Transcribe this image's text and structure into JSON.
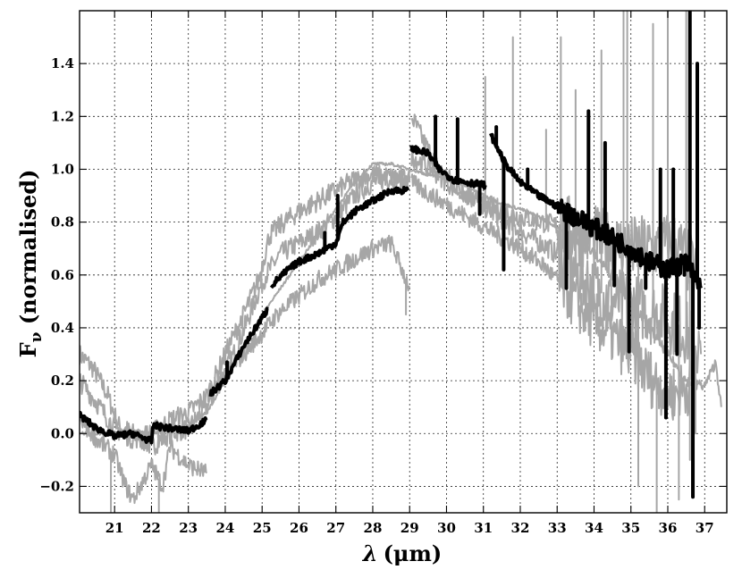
{
  "chart_data": {
    "type": "line",
    "title": "",
    "xlabel_symbol": "λ",
    "xlabel_unit": "(μm)",
    "ylabel_main": "F",
    "ylabel_sub": "ν",
    "ylabel_suffix": " (normalised)",
    "xlim": [
      20.05,
      37.6
    ],
    "ylim": [
      -0.3,
      1.6
    ],
    "x_ticks": [
      21,
      22,
      23,
      24,
      25,
      26,
      27,
      28,
      29,
      30,
      31,
      32,
      33,
      34,
      35,
      36,
      37
    ],
    "x_tick_labels": [
      "21",
      "22",
      "23",
      "24",
      "25",
      "26",
      "27",
      "28",
      "29",
      "30",
      "31",
      "32",
      "33",
      "34",
      "35",
      "36",
      "37"
    ],
    "y_ticks": [
      -0.2,
      0.0,
      0.2,
      0.4,
      0.6,
      0.8,
      1.0,
      1.2,
      1.4
    ],
    "y_tick_labels": [
      "−0.2",
      "0.0",
      "0.2",
      "0.4",
      "0.6",
      "0.8",
      "1.0",
      "1.2",
      "1.4"
    ],
    "grid": true,
    "colors": {
      "primary": "#000000",
      "comparison": "#a6a6a6"
    },
    "series": [
      {
        "role": "primary",
        "color": "#000000",
        "noise": 0.012,
        "segments": [
          [
            [
              20.05,
              0.07
            ],
            [
              20.5,
              0.02
            ],
            [
              21.0,
              -0.01
            ],
            [
              21.5,
              0.0
            ],
            [
              22.0,
              -0.03
            ],
            [
              22.05,
              0.03
            ],
            [
              22.5,
              0.02
            ],
            [
              23.0,
              0.01
            ],
            [
              23.5,
              0.05
            ]
          ],
          [
            [
              23.6,
              0.15
            ],
            [
              24.0,
              0.2
            ],
            [
              24.5,
              0.33
            ],
            [
              25.15,
              0.47
            ]
          ],
          [
            [
              25.25,
              0.56
            ],
            [
              25.7,
              0.62
            ],
            [
              26.0,
              0.65
            ],
            [
              26.5,
              0.68
            ],
            [
              27.0,
              0.72
            ],
            [
              27.2,
              0.8
            ],
            [
              27.6,
              0.85
            ],
            [
              28.0,
              0.88
            ],
            [
              28.5,
              0.92
            ],
            [
              28.95,
              0.92
            ]
          ],
          [
            [
              29.05,
              1.08
            ],
            [
              29.5,
              1.06
            ],
            [
              29.8,
              1.0
            ],
            [
              30.2,
              0.96
            ],
            [
              30.6,
              0.95
            ],
            [
              31.05,
              0.94
            ]
          ],
          [
            [
              31.2,
              1.13
            ],
            [
              31.6,
              1.02
            ],
            [
              32.0,
              0.95
            ],
            [
              32.5,
              0.9
            ],
            [
              33.0,
              0.86
            ],
            [
              33.5,
              0.82
            ],
            [
              34.0,
              0.78
            ],
            [
              34.5,
              0.74
            ],
            [
              35.0,
              0.7
            ],
            [
              35.5,
              0.65
            ],
            [
              36.0,
              0.62
            ],
            [
              36.5,
              0.65
            ],
            [
              36.9,
              0.55
            ]
          ]
        ],
        "spikes": [
          [
            24.05,
            0.27
          ],
          [
            26.7,
            0.76
          ],
          [
            27.05,
            0.9
          ],
          [
            29.7,
            1.2
          ],
          [
            30.3,
            1.19
          ],
          [
            30.9,
            0.83
          ],
          [
            31.35,
            1.16
          ],
          [
            31.55,
            0.62
          ],
          [
            32.2,
            1.0
          ],
          [
            33.25,
            0.55
          ],
          [
            33.85,
            1.22
          ],
          [
            34.3,
            1.1
          ],
          [
            34.55,
            0.56
          ],
          [
            34.95,
            0.31
          ],
          [
            35.4,
            0.55
          ],
          [
            35.8,
            1.0
          ],
          [
            35.95,
            0.06
          ],
          [
            36.15,
            1.0
          ],
          [
            36.25,
            0.3
          ],
          [
            36.45,
            0.6
          ],
          [
            36.6,
            1.6
          ],
          [
            36.68,
            -0.24
          ],
          [
            36.8,
            1.4
          ],
          [
            36.85,
            0.4
          ]
        ]
      },
      {
        "role": "comparison",
        "color": "#a6a6a6",
        "noise": 0.04,
        "segments": [
          [
            [
              20.05,
              0.3
            ],
            [
              20.4,
              0.25
            ],
            [
              20.8,
              0.15
            ],
            [
              21.1,
              0.03
            ],
            [
              21.5,
              0.0
            ],
            [
              22.0,
              -0.05
            ],
            [
              22.5,
              0.0
            ],
            [
              23.0,
              0.02
            ],
            [
              23.5,
              0.1
            ],
            [
              23.8,
              0.18
            ],
            [
              24.3,
              0.32
            ],
            [
              24.8,
              0.5
            ],
            [
              25.1,
              0.6
            ],
            [
              25.5,
              0.68
            ],
            [
              26.0,
              0.72
            ],
            [
              26.5,
              0.76
            ],
            [
              27.0,
              0.82
            ],
            [
              27.5,
              0.9
            ],
            [
              28.0,
              0.95
            ],
            [
              28.5,
              0.97
            ],
            [
              29.0,
              0.95
            ]
          ],
          [
            [
              29.05,
              1.2
            ],
            [
              29.4,
              1.1
            ],
            [
              29.8,
              1.0
            ],
            [
              30.4,
              0.92
            ],
            [
              31.0,
              0.86
            ],
            [
              31.6,
              0.8
            ],
            [
              32.2,
              0.75
            ],
            [
              32.8,
              0.7
            ],
            [
              33.4,
              0.62
            ],
            [
              34.0,
              0.55
            ],
            [
              34.6,
              0.5
            ],
            [
              35.2,
              0.48
            ],
            [
              35.8,
              0.45
            ],
            [
              36.4,
              0.4
            ],
            [
              36.9,
              0.3
            ]
          ]
        ],
        "spikes": [
          [
            33.1,
            1.5
          ],
          [
            33.5,
            1.3
          ],
          [
            34.2,
            1.45
          ],
          [
            35.6,
            1.55
          ],
          [
            36.3,
            -0.25
          ],
          [
            36.5,
            1.6
          ],
          [
            36.75,
            0.0
          ]
        ]
      },
      {
        "role": "comparison",
        "color": "#a6a6a6",
        "noise": 0.04,
        "segments": [
          [
            [
              20.05,
              0.2
            ],
            [
              20.5,
              0.12
            ],
            [
              21.0,
              0.02
            ],
            [
              21.5,
              -0.02
            ],
            [
              22.0,
              0.0
            ],
            [
              22.5,
              0.05
            ],
            [
              23.0,
              0.08
            ],
            [
              23.5,
              0.14
            ],
            [
              24.0,
              0.3
            ],
            [
              24.5,
              0.45
            ],
            [
              24.9,
              0.58
            ],
            [
              25.2,
              0.75
            ],
            [
              25.6,
              0.8
            ],
            [
              26.0,
              0.84
            ],
            [
              26.5,
              0.88
            ],
            [
              27.0,
              0.92
            ],
            [
              27.5,
              0.96
            ],
            [
              28.0,
              0.98
            ],
            [
              28.5,
              0.97
            ],
            [
              29.0,
              0.96
            ]
          ],
          [
            [
              29.05,
              1.05
            ],
            [
              29.6,
              1.0
            ],
            [
              30.2,
              0.93
            ],
            [
              30.8,
              0.88
            ],
            [
              31.4,
              0.85
            ],
            [
              32.0,
              0.82
            ],
            [
              32.6,
              0.8
            ],
            [
              33.2,
              0.78
            ],
            [
              33.8,
              0.75
            ],
            [
              34.4,
              0.72
            ],
            [
              35.0,
              0.7
            ],
            [
              35.6,
              0.7
            ],
            [
              36.2,
              0.72
            ],
            [
              36.8,
              0.6
            ]
          ]
        ],
        "spikes": [
          [
            31.05,
            1.35
          ],
          [
            32.7,
            1.15
          ],
          [
            34.8,
            1.6
          ],
          [
            35.2,
            -0.2
          ],
          [
            36.0,
            1.6
          ],
          [
            36.6,
            -0.1
          ]
        ]
      },
      {
        "role": "comparison",
        "color": "#a6a6a6",
        "noise": 0.035,
        "segments": [
          [
            [
              20.05,
              0.05
            ],
            [
              20.5,
              -0.02
            ],
            [
              21.0,
              -0.08
            ],
            [
              21.3,
              -0.2
            ],
            [
              21.5,
              -0.25
            ],
            [
              22.0,
              -0.12
            ],
            [
              22.3,
              -0.2
            ],
            [
              22.5,
              -0.05
            ],
            [
              23.0,
              -0.12
            ],
            [
              23.5,
              -0.15
            ]
          ],
          [
            [
              23.7,
              0.18
            ],
            [
              24.0,
              0.22
            ],
            [
              24.5,
              0.3
            ],
            [
              25.0,
              0.38
            ],
            [
              25.4,
              0.45
            ],
            [
              26.0,
              0.52
            ],
            [
              26.5,
              0.58
            ],
            [
              27.0,
              0.62
            ],
            [
              27.5,
              0.66
            ],
            [
              28.0,
              0.7
            ],
            [
              28.5,
              0.72
            ],
            [
              29.0,
              0.55
            ]
          ],
          [
            [
              29.05,
              0.95
            ],
            [
              29.6,
              0.9
            ],
            [
              30.2,
              0.85
            ],
            [
              30.8,
              0.8
            ],
            [
              31.4,
              0.75
            ],
            [
              32.0,
              0.7
            ],
            [
              32.6,
              0.64
            ],
            [
              33.2,
              0.55
            ],
            [
              33.8,
              0.45
            ],
            [
              34.4,
              0.38
            ],
            [
              35.0,
              0.3
            ],
            [
              35.6,
              0.2
            ],
            [
              36.2,
              0.15
            ],
            [
              36.8,
              0.2
            ]
          ]
        ],
        "spikes": [
          [
            20.9,
            -0.3
          ],
          [
            22.2,
            -0.3
          ],
          [
            28.9,
            0.45
          ],
          [
            31.8,
            1.5
          ],
          [
            34.9,
            1.6
          ],
          [
            35.7,
            -0.3
          ]
        ]
      },
      {
        "role": "comparison",
        "color": "#a6a6a6",
        "noise": 0.006,
        "segments": [
          [
            [
              20.05,
              0.0
            ],
            [
              20.5,
              0.0
            ],
            [
              21.0,
              0.0
            ],
            [
              21.5,
              0.01
            ],
            [
              22.0,
              0.0
            ],
            [
              22.5,
              0.02
            ],
            [
              23.0,
              0.03
            ],
            [
              23.5,
              0.08
            ],
            [
              24.0,
              0.2
            ],
            [
              24.5,
              0.33
            ],
            [
              25.0,
              0.45
            ],
            [
              25.5,
              0.55
            ],
            [
              26.0,
              0.65
            ],
            [
              26.5,
              0.75
            ],
            [
              27.0,
              0.85
            ],
            [
              27.5,
              0.95
            ],
            [
              28.0,
              1.02
            ],
            [
              28.5,
              1.02
            ],
            [
              29.0,
              1.0
            ],
            [
              29.5,
              0.98
            ],
            [
              30.0,
              0.96
            ],
            [
              30.5,
              0.94
            ],
            [
              31.0,
              0.9
            ],
            [
              31.5,
              0.87
            ],
            [
              32.0,
              0.85
            ],
            [
              32.5,
              0.82
            ],
            [
              33.0,
              0.78
            ],
            [
              33.5,
              0.73
            ],
            [
              34.0,
              0.68
            ],
            [
              34.5,
              0.6
            ],
            [
              35.0,
              0.5
            ],
            [
              35.5,
              0.4
            ],
            [
              36.0,
              0.3
            ],
            [
              36.5,
              0.2
            ],
            [
              37.0,
              0.18
            ],
            [
              37.3,
              0.27
            ],
            [
              37.45,
              0.1
            ]
          ]
        ],
        "spikes": []
      }
    ]
  }
}
